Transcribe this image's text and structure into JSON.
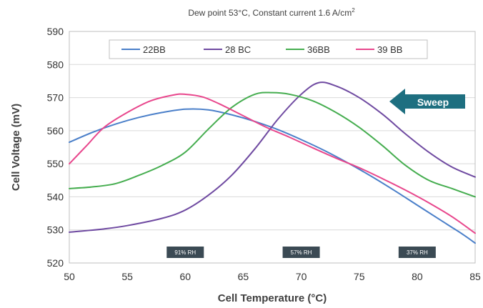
{
  "chart_data": {
    "type": "line",
    "title": "Dew point 53°C, Constant current 1.6 A/cm",
    "title_superscript": "2",
    "xlabel": "Cell Temperature (°C)",
    "ylabel": "Cell Voltage (mV)",
    "xlim": [
      50,
      85
    ],
    "ylim": [
      520,
      590
    ],
    "x_ticks": [
      "50",
      "55",
      "60",
      "65",
      "70",
      "75",
      "80",
      "85"
    ],
    "y_ticks": [
      "520",
      "530",
      "540",
      "550",
      "560",
      "570",
      "580",
      "590"
    ],
    "grid": "horizontal",
    "legend_position": "top",
    "series": [
      {
        "name": "22BB",
        "color": "#4a7fc9",
        "points": [
          [
            50,
            556.5
          ],
          [
            52,
            559.5
          ],
          [
            54,
            562
          ],
          [
            56,
            564
          ],
          [
            58,
            565.5
          ],
          [
            60,
            566.5
          ],
          [
            62,
            566.3
          ],
          [
            64,
            564.8
          ],
          [
            66,
            562.8
          ],
          [
            68,
            560.3
          ],
          [
            70,
            557.3
          ],
          [
            72,
            554
          ],
          [
            74,
            550.3
          ],
          [
            76,
            546.3
          ],
          [
            78,
            542
          ],
          [
            80,
            537.5
          ],
          [
            82,
            533
          ],
          [
            84,
            528.5
          ],
          [
            85,
            526
          ]
        ]
      },
      {
        "name": "28 BC",
        "color": "#6f4aa1",
        "points": [
          [
            50,
            529.3
          ],
          [
            53,
            530.3
          ],
          [
            55,
            531.3
          ],
          [
            58,
            533.5
          ],
          [
            60,
            536
          ],
          [
            62,
            540.5
          ],
          [
            64,
            546.5
          ],
          [
            66,
            554.5
          ],
          [
            68,
            563.5
          ],
          [
            70,
            571
          ],
          [
            71.5,
            574.5
          ],
          [
            73,
            573.5
          ],
          [
            75,
            570
          ],
          [
            77,
            565
          ],
          [
            79,
            559
          ],
          [
            81,
            553.5
          ],
          [
            83,
            549
          ],
          [
            85,
            546
          ]
        ]
      },
      {
        "name": "36BB",
        "color": "#45ad4f",
        "points": [
          [
            50,
            542.5
          ],
          [
            52,
            543
          ],
          [
            54,
            544
          ],
          [
            56,
            546.5
          ],
          [
            58,
            549.5
          ],
          [
            60,
            553.5
          ],
          [
            62,
            560.5
          ],
          [
            64,
            567
          ],
          [
            66,
            571
          ],
          [
            67.5,
            571.5
          ],
          [
            69,
            571
          ],
          [
            71,
            569
          ],
          [
            73,
            565.5
          ],
          [
            75,
            561
          ],
          [
            77,
            555.5
          ],
          [
            79,
            549.5
          ],
          [
            81,
            545
          ],
          [
            83,
            542.5
          ],
          [
            85,
            540
          ]
        ]
      },
      {
        "name": "39 BB",
        "color": "#e8468c",
        "points": [
          [
            50,
            550
          ],
          [
            51.5,
            555.5
          ],
          [
            53,
            561
          ],
          [
            55,
            565.5
          ],
          [
            57,
            569
          ],
          [
            59,
            570.8
          ],
          [
            60,
            571
          ],
          [
            61.5,
            570.2
          ],
          [
            63,
            568
          ],
          [
            65,
            564.5
          ],
          [
            67,
            561
          ],
          [
            69,
            558
          ],
          [
            71,
            554.8
          ],
          [
            73,
            551.7
          ],
          [
            75,
            548.8
          ],
          [
            77,
            545.5
          ],
          [
            79,
            542
          ],
          [
            81,
            538.2
          ],
          [
            83,
            534
          ],
          [
            85,
            529
          ]
        ]
      }
    ],
    "annotations": [
      {
        "label": "91% RH",
        "x": 60
      },
      {
        "label": "57% RH",
        "x": 70
      },
      {
        "label": "37% RH",
        "x": 80
      }
    ],
    "sweep_label": "Sweep"
  }
}
